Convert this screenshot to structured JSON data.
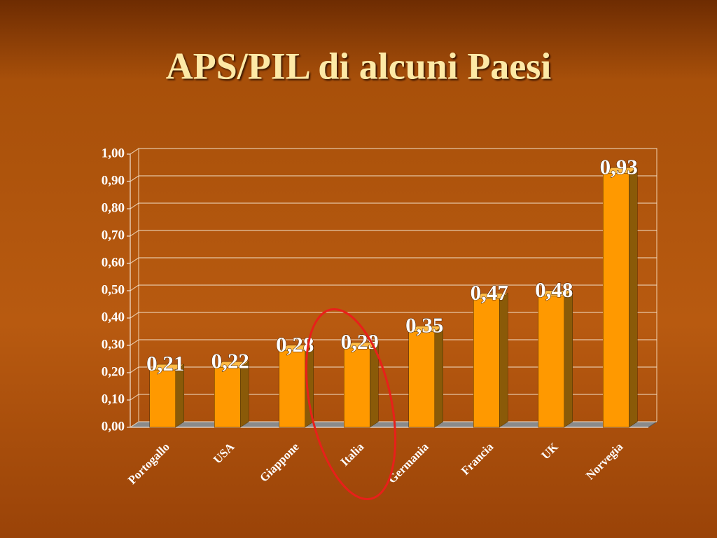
{
  "chart_data": {
    "type": "bar3d",
    "title": "APS/PIL di alcuni Paesi",
    "categories": [
      "Portogallo",
      "USA",
      "Giappone",
      "Italia",
      "Germania",
      "Francia",
      "UK",
      "Norvegia"
    ],
    "values": [
      0.21,
      0.22,
      0.28,
      0.29,
      0.35,
      0.47,
      0.48,
      0.93
    ],
    "value_labels": [
      "0,21",
      "0,22",
      "0,28",
      "0,29",
      "0,35",
      "0,47",
      "0,48",
      "0,93"
    ],
    "color": "#ff9900",
    "ylim": [
      0,
      1
    ],
    "yticks": [
      {
        "value": 0,
        "label": "0,00"
      },
      {
        "value": 0.1,
        "label": "0,10"
      },
      {
        "value": 0.2,
        "label": "0,20"
      },
      {
        "value": 0.3,
        "label": "0,30"
      },
      {
        "value": 0.4,
        "label": "0,40"
      },
      {
        "value": 0.5,
        "label": "0,50"
      },
      {
        "value": 0.6,
        "label": "0,60"
      },
      {
        "value": 0.7,
        "label": "0,70"
      },
      {
        "value": 0.8,
        "label": "0,80"
      },
      {
        "value": 0.9,
        "label": "0,90"
      },
      {
        "value": 1,
        "label": "1,00"
      }
    ],
    "grid": true
  }
}
